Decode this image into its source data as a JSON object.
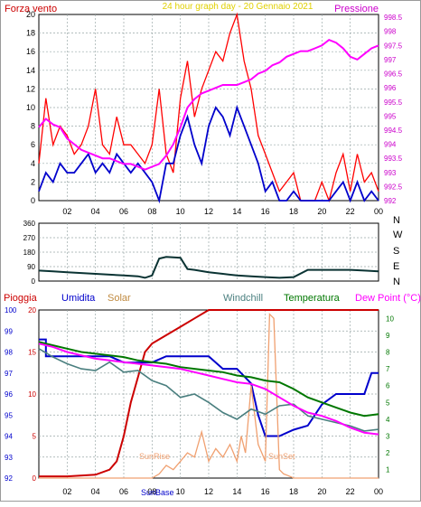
{
  "colors": {
    "wind": "#ff0000",
    "gust": "#ff0000",
    "avg_wind": "#0000cc",
    "pressure": "#ff00ff",
    "direction": "#0a3333",
    "rain": "#cc0000",
    "humidity": "#0000cc",
    "solar": "#f0a070",
    "windchill": "#4a7f7f",
    "temperature": "#007700",
    "dewpoint": "#ff00ff",
    "grid": "#9aa8a8",
    "dark": "#000000"
  },
  "top": {
    "label_left": "Forza vento",
    "title": "24 hour graph day - 20 Gennaio 2021",
    "label_right": "Pressione"
  },
  "bottom": {
    "label_rain": "Pioggia",
    "label_humidity": "Umidita",
    "label_solar": "Solar",
    "label_windchill": "Windchill",
    "label_temperature": "Temperatura",
    "label_dewpoint": "Dew Point (°C)",
    "sunrise_label": "SunRise",
    "sunset_label": "SunSet",
    "sunbase_label": "SunBase"
  },
  "chart_data": [
    {
      "type": "line",
      "title": "24 hour graph day - 20 Gennaio 2021",
      "x_ticks": [
        "02",
        "04",
        "06",
        "08",
        "10",
        "12",
        "14",
        "16",
        "18",
        "20",
        "22",
        "00"
      ],
      "x_range": [
        0,
        24
      ],
      "y_left": {
        "label": "Forza vento",
        "range": [
          0,
          20
        ],
        "ticks": [
          "0",
          "2",
          "4",
          "6",
          "8",
          "10",
          "12",
          "14",
          "16",
          "18",
          "20"
        ]
      },
      "y_right": {
        "label": "Pressione",
        "range": [
          992,
          998.6
        ],
        "ticks": [
          "992",
          "992.5",
          "993",
          "993.5",
          "994",
          "994.5",
          "995",
          "995.5",
          "996",
          "996.5",
          "997",
          "997.5",
          "998",
          "998.5"
        ]
      },
      "series": [
        {
          "name": "gust",
          "axis": "left",
          "x": [
            0,
            0.5,
            1,
            1.5,
            2,
            2.5,
            3,
            3.5,
            4,
            4.5,
            5,
            5.5,
            6,
            6.5,
            7,
            7.5,
            8,
            8.5,
            9,
            9.5,
            10,
            10.5,
            11,
            11.5,
            12,
            12.5,
            13,
            13.5,
            14,
            14.5,
            15,
            15.5,
            16,
            16.5,
            17,
            17.5,
            18,
            18.5,
            19,
            19.5,
            20,
            20.5,
            21,
            21.5,
            22,
            22.5,
            23,
            23.5,
            24
          ],
          "y": [
            4,
            11,
            6,
            8,
            7,
            5,
            6,
            8,
            12,
            6,
            5,
            9,
            6,
            6,
            5,
            4,
            6,
            12,
            5,
            3,
            11,
            15,
            9,
            12,
            14,
            16,
            15,
            18,
            20,
            15,
            12,
            7,
            5,
            3,
            1,
            2,
            3,
            0,
            0,
            0,
            2,
            0,
            3,
            5,
            1,
            5,
            2,
            3,
            1
          ]
        },
        {
          "name": "avg_wind",
          "axis": "left",
          "x": [
            0,
            0.5,
            1,
            1.5,
            2,
            2.5,
            3,
            3.5,
            4,
            4.5,
            5,
            5.5,
            6,
            6.5,
            7,
            7.5,
            8,
            8.5,
            9,
            9.5,
            10,
            10.5,
            11,
            11.5,
            12,
            12.5,
            13,
            13.5,
            14,
            14.5,
            15,
            15.5,
            16,
            16.5,
            17,
            17.5,
            18,
            18.5,
            19,
            19.5,
            20,
            20.5,
            21,
            21.5,
            22,
            22.5,
            23,
            23.5,
            24
          ],
          "y": [
            1,
            3,
            2,
            4,
            3,
            3,
            4,
            5,
            3,
            4,
            3,
            5,
            4,
            3,
            4,
            3,
            2,
            0,
            4,
            4,
            7,
            9,
            6,
            4,
            8,
            10,
            9,
            7,
            10,
            8,
            6,
            4,
            1,
            2,
            0,
            0,
            1,
            0,
            0,
            0,
            0,
            0,
            1,
            2,
            0,
            2,
            0,
            1,
            0
          ]
        },
        {
          "name": "pressure",
          "axis": "right",
          "x": [
            0,
            0.5,
            1,
            1.5,
            2,
            2.5,
            3,
            3.5,
            4,
            4.5,
            5,
            5.5,
            6,
            6.5,
            7,
            7.5,
            8,
            8.5,
            9,
            9.5,
            10,
            10.5,
            11,
            11.5,
            12,
            12.5,
            13,
            13.5,
            14,
            14.5,
            15,
            15.5,
            16,
            16.5,
            17,
            17.5,
            18,
            18.5,
            19,
            19.5,
            20,
            20.5,
            21,
            21.5,
            22,
            22.5,
            23,
            23.5,
            24
          ],
          "y": [
            994.6,
            994.9,
            994.7,
            994.6,
            994.2,
            994.0,
            993.8,
            993.7,
            993.6,
            993.5,
            993.5,
            993.4,
            993.3,
            993.3,
            993.2,
            993.1,
            993.2,
            993.3,
            993.6,
            994.0,
            994.6,
            995.3,
            995.6,
            995.8,
            995.9,
            996.0,
            996.1,
            996.1,
            996.1,
            996.2,
            996.3,
            996.5,
            996.6,
            996.8,
            996.9,
            997.1,
            997.2,
            997.3,
            997.3,
            997.4,
            997.5,
            997.7,
            997.6,
            997.4,
            997.1,
            997.0,
            997.2,
            997.4,
            997.5
          ]
        }
      ]
    },
    {
      "type": "line",
      "title": "",
      "x_range": [
        0,
        24
      ],
      "y_right": {
        "ticks": [
          "N",
          "W",
          "S",
          "E",
          "N"
        ]
      },
      "y_left": {
        "range": [
          0,
          360
        ],
        "ticks": [
          "0",
          "90",
          "180",
          "270",
          "360"
        ]
      },
      "series": [
        {
          "name": "direction",
          "x": [
            0,
            1,
            2,
            3,
            4,
            5,
            6,
            7,
            7.5,
            8,
            8.5,
            9,
            10,
            10.5,
            11,
            12,
            13,
            14,
            15,
            16,
            17,
            18,
            19,
            20,
            21,
            22,
            23,
            24
          ],
          "y": [
            65,
            60,
            55,
            50,
            45,
            40,
            35,
            30,
            20,
            35,
            140,
            150,
            145,
            75,
            70,
            55,
            45,
            35,
            30,
            25,
            20,
            25,
            70,
            70,
            70,
            70,
            65,
            60
          ]
        }
      ]
    },
    {
      "type": "line",
      "title": "",
      "x_ticks": [
        "02",
        "04",
        "06",
        "08",
        "10",
        "12",
        "14",
        "16",
        "18",
        "20",
        "22",
        "00"
      ],
      "x_range": [
        0,
        24
      ],
      "y_humidity": {
        "label": "Umidita",
        "range": [
          92,
          100
        ],
        "ticks": [
          "92",
          "93",
          "94",
          "95",
          "96",
          "97",
          "98",
          "99",
          "100"
        ]
      },
      "y_rain": {
        "label": "Pioggia",
        "range": [
          0,
          20
        ],
        "ticks": [
          "0",
          "5",
          "10",
          "15",
          "20"
        ]
      },
      "y_temp": {
        "label": "Dew Point (°C)",
        "range": [
          0.5,
          10.5
        ],
        "ticks": [
          "1",
          "2",
          "3",
          "4",
          "5",
          "6",
          "7",
          "8",
          "9",
          "10"
        ]
      },
      "series": [
        {
          "name": "rain",
          "axis": "rain",
          "x": [
            0,
            2,
            4,
            5,
            5.5,
            6,
            6.5,
            7,
            7.5,
            8,
            9,
            10,
            11,
            12,
            13,
            14,
            15,
            16,
            17,
            18,
            19,
            20,
            21,
            22,
            23,
            24
          ],
          "y": [
            0.2,
            0.2,
            0.4,
            1.0,
            2.0,
            5.0,
            9.0,
            12.0,
            15.0,
            16.0,
            17.0,
            18.0,
            19.0,
            20.0,
            20.0,
            20.0,
            20.0,
            20.0,
            20.0,
            20.0,
            20.0,
            20.0,
            20.0,
            20.0,
            20.0,
            20.0
          ]
        },
        {
          "name": "humidity",
          "axis": "humidity",
          "x": [
            0,
            0.5,
            0.5,
            4,
            5,
            6,
            7,
            8,
            9,
            10,
            11,
            12,
            13,
            14,
            15,
            15.5,
            16,
            17,
            18,
            19,
            20,
            21,
            22,
            23,
            23.5,
            24
          ],
          "y": [
            98.6,
            98.6,
            97.8,
            97.8,
            97.8,
            97.5,
            97.5,
            97.5,
            97.8,
            97.8,
            97.8,
            97.8,
            97.2,
            97.2,
            96.5,
            95,
            94,
            94,
            94.3,
            94.5,
            95.5,
            96,
            96,
            96,
            97,
            97
          ]
        },
        {
          "name": "solar",
          "axis": "rain",
          "x": [
            0,
            8,
            8.5,
            9,
            9.5,
            10,
            10.5,
            11,
            11.5,
            12,
            12.5,
            13,
            13.5,
            14,
            14.3,
            14.6,
            15,
            15.5,
            16,
            16.3,
            16.6,
            17,
            17.3,
            17.6,
            18,
            24
          ],
          "y": [
            0,
            0,
            0.5,
            1.5,
            1.0,
            2.0,
            3.0,
            2.5,
            5.5,
            2.0,
            3.5,
            2.5,
            4.0,
            2.0,
            5.0,
            3.0,
            11.0,
            4.0,
            2.0,
            19.5,
            19.0,
            1.0,
            0.5,
            0.3,
            0,
            0
          ]
        },
        {
          "name": "windchill",
          "axis": "temp",
          "x": [
            0,
            1,
            2,
            3,
            4,
            5,
            6,
            7,
            8,
            9,
            10,
            11,
            12,
            13,
            14,
            15,
            16,
            17,
            18,
            19,
            20,
            21,
            22,
            23,
            24
          ],
          "y": [
            8.2,
            7.7,
            7.3,
            7.0,
            6.9,
            7.4,
            6.8,
            6.9,
            6.3,
            6.0,
            5.3,
            5.5,
            5.0,
            4.4,
            4.0,
            4.6,
            4.3,
            4.8,
            4.9,
            4.2,
            4.0,
            3.8,
            3.6,
            3.3,
            3.4
          ]
        },
        {
          "name": "temperature",
          "axis": "temp",
          "x": [
            0,
            1,
            2,
            3,
            4,
            5,
            6,
            7,
            8,
            9,
            10,
            11,
            12,
            13,
            14,
            15,
            16,
            17,
            18,
            19,
            20,
            21,
            22,
            23,
            24
          ],
          "y": [
            8.6,
            8.4,
            8.2,
            8.0,
            7.9,
            7.8,
            7.7,
            7.5,
            7.4,
            7.3,
            7.1,
            7.0,
            6.9,
            6.8,
            6.6,
            6.5,
            6.3,
            6.2,
            5.8,
            5.3,
            5.0,
            4.7,
            4.4,
            4.2,
            4.3
          ]
        },
        {
          "name": "dewpoint",
          "axis": "temp",
          "x": [
            0,
            1,
            2,
            3,
            4,
            5,
            6,
            7,
            8,
            9,
            10,
            11,
            12,
            13,
            14,
            15,
            16,
            17,
            18,
            19,
            20,
            21,
            22,
            23,
            24
          ],
          "y": [
            8.5,
            8.3,
            8.0,
            7.8,
            7.6,
            7.5,
            7.4,
            7.3,
            7.2,
            7.1,
            7.0,
            6.8,
            6.6,
            6.4,
            6.2,
            6.1,
            5.8,
            5.3,
            4.8,
            4.4,
            4.2,
            3.9,
            3.5,
            3.2,
            3.1
          ]
        }
      ]
    }
  ]
}
